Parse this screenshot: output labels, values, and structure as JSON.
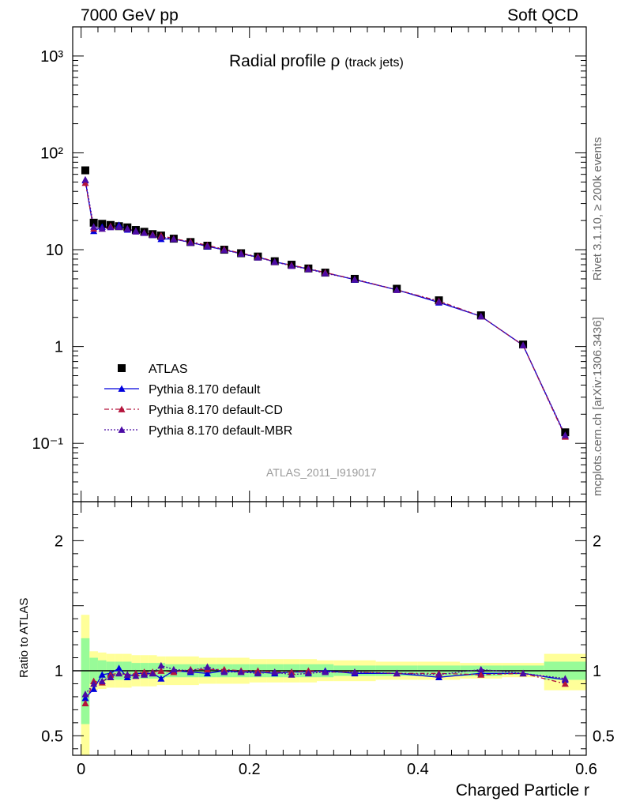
{
  "header": {
    "energy_label": "7000 GeV pp",
    "category_label": "Soft QCD"
  },
  "title": {
    "main": "Radial profile ρ",
    "sub": "(track jets)"
  },
  "side_text": {
    "rivet": "Rivet 3.1.10, ≥ 200k events",
    "source": "mcplots.cern.ch [arXiv:1306.3436]"
  },
  "analysis_id": "ATLAS_2011_I919017",
  "colors": {
    "atlas": "#000000",
    "default": "#0000dd",
    "cd": "#b4143c",
    "mbr": "#4b0ba5",
    "band_inner": "#98fb98",
    "band_outer": "#ffff99"
  },
  "chart_data": [
    {
      "type": "scatter",
      "panel": "main",
      "title": "Radial profile ρ (track jets)",
      "xlabel": "Charged Particle r",
      "ylabel": "",
      "yscale": "log",
      "xlim": [
        -0.01,
        0.6
      ],
      "ylim": [
        0.025,
        2000
      ],
      "y_ticks": [
        {
          "value": 0.1,
          "label": "10⁻¹"
        },
        {
          "value": 1,
          "label": "1"
        },
        {
          "value": 10,
          "label": "10"
        },
        {
          "value": 100,
          "label": "10²"
        },
        {
          "value": 1000,
          "label": "10³"
        }
      ],
      "legend_position": "bottom-left",
      "x": [
        0.005,
        0.015,
        0.025,
        0.035,
        0.045,
        0.055,
        0.065,
        0.075,
        0.085,
        0.095,
        0.11,
        0.13,
        0.15,
        0.17,
        0.19,
        0.21,
        0.23,
        0.25,
        0.27,
        0.29,
        0.325,
        0.375,
        0.425,
        0.475,
        0.525,
        0.575
      ],
      "series": [
        {
          "name": "ATLAS",
          "style": "data",
          "values": [
            66,
            19,
            18.5,
            18,
            17.5,
            17,
            16,
            15.3,
            14.5,
            14,
            13,
            12,
            11,
            10,
            9.2,
            8.5,
            7.6,
            7,
            6.4,
            5.8,
            5,
            3.95,
            3,
            2.1,
            1.05,
            0.13
          ]
        },
        {
          "name": "Pythia 8.170 default",
          "style": "solid",
          "values": [
            52,
            15.6,
            17.2,
            17.2,
            18,
            16.1,
            15.7,
            15,
            14.2,
            12.9,
            12.9,
            11.9,
            10.8,
            10,
            9.1,
            8.4,
            7.5,
            6.9,
            6.3,
            5.8,
            4.9,
            3.85,
            2.85,
            2.05,
            1.03,
            0.12
          ]
        },
        {
          "name": "Pythia 8.170 default-CD",
          "style": "dashdot",
          "values": [
            49,
            16.5,
            16.5,
            17.5,
            17.2,
            16.5,
            15.5,
            15,
            14.4,
            14,
            13,
            12.1,
            11.1,
            10.1,
            9.2,
            8.5,
            7.5,
            6.9,
            6.4,
            5.8,
            4.95,
            3.85,
            2.95,
            2.05,
            1.03,
            0.117
          ]
        },
        {
          "name": "Pythia 8.170 default-MBR",
          "style": "dotted",
          "values": [
            53,
            17.3,
            16.5,
            17.1,
            17.2,
            16.5,
            15.4,
            14.9,
            14.2,
            13.5,
            12.9,
            11.8,
            10.9,
            9.9,
            9.1,
            8.3,
            7.5,
            6.8,
            6.3,
            5.7,
            4.95,
            3.85,
            2.9,
            2.05,
            1.03,
            0.122
          ]
        }
      ]
    },
    {
      "type": "line",
      "panel": "ratio",
      "xlabel": "Charged Particle r",
      "ylabel": "Ratio to ATLAS",
      "xlim": [
        -0.01,
        0.6
      ],
      "ylim": [
        0.35,
        2.3
      ],
      "x_ticks": [
        {
          "value": 0,
          "label": "0"
        },
        {
          "value": 0.2,
          "label": "0.2"
        },
        {
          "value": 0.4,
          "label": "0.4"
        },
        {
          "value": 0.6,
          "label": "0.6"
        }
      ],
      "y_ticks": [
        {
          "value": 0.5,
          "label": "0.5"
        },
        {
          "value": 1,
          "label": "1"
        },
        {
          "value": 2,
          "label": "2"
        }
      ],
      "bins": [
        0,
        0.01,
        0.02,
        0.03,
        0.04,
        0.05,
        0.06,
        0.07,
        0.08,
        0.09,
        0.1,
        0.12,
        0.14,
        0.16,
        0.18,
        0.2,
        0.22,
        0.24,
        0.26,
        0.28,
        0.3,
        0.35,
        0.4,
        0.45,
        0.5,
        0.55,
        0.6
      ],
      "band_inner": [
        [
          0.59,
          1.25
        ],
        [
          0.9,
          1.1
        ],
        [
          0.92,
          1.08
        ],
        [
          0.93,
          1.07
        ],
        [
          0.93,
          1.07
        ],
        [
          0.93,
          1.07
        ],
        [
          0.94,
          1.06
        ],
        [
          0.94,
          1.06
        ],
        [
          0.94,
          1.06
        ],
        [
          0.94,
          1.06
        ],
        [
          0.95,
          1.05
        ],
        [
          0.95,
          1.05
        ],
        [
          0.95,
          1.05
        ],
        [
          0.95,
          1.05
        ],
        [
          0.95,
          1.05
        ],
        [
          0.95,
          1.05
        ],
        [
          0.95,
          1.05
        ],
        [
          0.95,
          1.05
        ],
        [
          0.95,
          1.05
        ],
        [
          0.95,
          1.05
        ],
        [
          0.96,
          1.04
        ],
        [
          0.96,
          1.04
        ],
        [
          0.96,
          1.04
        ],
        [
          0.96,
          1.04
        ],
        [
          0.97,
          1.04
        ],
        [
          0.93,
          1.07
        ]
      ],
      "band_outer": [
        [
          0.35,
          1.43
        ],
        [
          0.85,
          1.15
        ],
        [
          0.86,
          1.14
        ],
        [
          0.87,
          1.13
        ],
        [
          0.87,
          1.13
        ],
        [
          0.87,
          1.13
        ],
        [
          0.88,
          1.12
        ],
        [
          0.88,
          1.12
        ],
        [
          0.88,
          1.12
        ],
        [
          0.89,
          1.11
        ],
        [
          0.89,
          1.11
        ],
        [
          0.89,
          1.11
        ],
        [
          0.9,
          1.1
        ],
        [
          0.9,
          1.1
        ],
        [
          0.9,
          1.1
        ],
        [
          0.91,
          1.09
        ],
        [
          0.91,
          1.09
        ],
        [
          0.91,
          1.09
        ],
        [
          0.91,
          1.09
        ],
        [
          0.92,
          1.08
        ],
        [
          0.92,
          1.08
        ],
        [
          0.93,
          1.07
        ],
        [
          0.93,
          1.07
        ],
        [
          0.94,
          1.06
        ],
        [
          0.95,
          1.06
        ],
        [
          0.85,
          1.13
        ]
      ],
      "x": [
        0.005,
        0.015,
        0.025,
        0.035,
        0.045,
        0.055,
        0.065,
        0.075,
        0.085,
        0.095,
        0.11,
        0.13,
        0.15,
        0.17,
        0.19,
        0.21,
        0.23,
        0.25,
        0.27,
        0.29,
        0.325,
        0.375,
        0.425,
        0.475,
        0.525,
        0.575
      ],
      "series": [
        {
          "name": "Pythia 8.170 default",
          "style": "solid",
          "values": [
            0.79,
            0.86,
            0.97,
            0.98,
            1.02,
            0.95,
            0.98,
            0.98,
            0.98,
            0.94,
            1.0,
            0.99,
            0.98,
            1.0,
            0.99,
            0.99,
            0.98,
            0.99,
            0.99,
            1.0,
            0.98,
            0.98,
            0.95,
            0.98,
            0.98,
            0.93
          ]
        },
        {
          "name": "Pythia 8.170 default-CD",
          "style": "dashdot",
          "values": [
            0.75,
            0.92,
            0.91,
            0.97,
            0.98,
            0.97,
            0.98,
            0.99,
            0.99,
            1.0,
            0.99,
            1.01,
            1.01,
            1.01,
            1.0,
            1.0,
            0.99,
            0.99,
            1.0,
            0.99,
            0.99,
            0.98,
            0.98,
            0.97,
            0.98,
            0.9
          ]
        },
        {
          "name": "Pythia 8.170 default-MBR",
          "style": "dotted",
          "values": [
            0.82,
            0.9,
            0.92,
            0.95,
            0.98,
            0.97,
            0.96,
            0.97,
            0.98,
            1.04,
            1.01,
            1.0,
            1.03,
            0.99,
            0.99,
            0.98,
            0.99,
            0.97,
            0.98,
            0.99,
            0.99,
            0.98,
            0.97,
            1.01,
            0.98,
            0.94
          ]
        }
      ]
    }
  ]
}
